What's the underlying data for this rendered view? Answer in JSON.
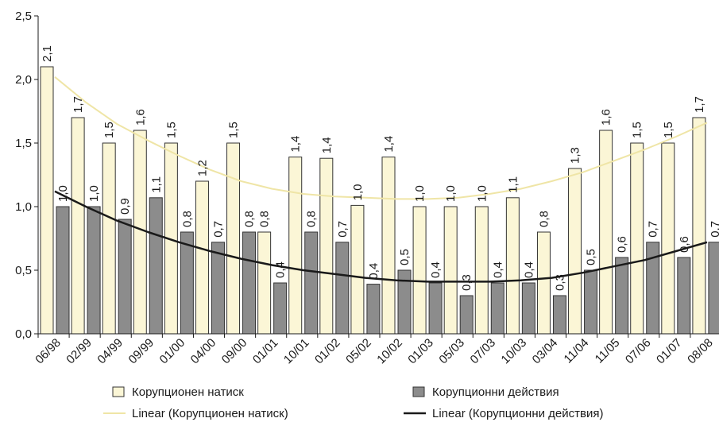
{
  "chart_data": {
    "type": "bar",
    "ylim": [
      0,
      2.5
    ],
    "yticks": [
      "0,0",
      "0,5",
      "1,0",
      "1,5",
      "2,0",
      "2,5"
    ],
    "ytick_values": [
      0,
      0.5,
      1.0,
      1.5,
      2.0,
      2.5
    ],
    "categories": [
      "06/98",
      "02/99",
      "04/99",
      "09/99",
      "01/00",
      "04/00",
      "09/00",
      "01/01",
      "10/01",
      "01/02",
      "05/02",
      "10/02",
      "01/03",
      "05/03",
      "07/03",
      "10/03",
      "03/04",
      "11/04",
      "11/05",
      "07/06",
      "01/07",
      "08/08"
    ],
    "series": [
      {
        "name": "Корупционен натиск",
        "color": "#fbf6d6",
        "values": [
          2.1,
          1.7,
          1.5,
          1.6,
          1.5,
          1.2,
          1.5,
          0.8,
          1.39,
          1.38,
          1.01,
          1.39,
          1.0,
          1.0,
          1.0,
          1.07,
          0.8,
          1.3,
          1.6,
          1.5,
          1.5,
          1.7
        ],
        "labels": [
          "2,1",
          "1,7",
          "1,5",
          "1,6",
          "1,5",
          "1,2",
          "1,5",
          "0,8",
          "1,4",
          "1,4",
          "1,0",
          "1,4",
          "1,0",
          "1,0",
          "1,0",
          "1,1",
          "0,8",
          "1,3",
          "1,6",
          "1,5",
          "1,5",
          "1,7"
        ]
      },
      {
        "name": "Корупционни действия",
        "color": "#8c8c8c",
        "values": [
          1.0,
          1.0,
          0.9,
          1.07,
          0.8,
          0.72,
          0.8,
          0.4,
          0.8,
          0.72,
          0.39,
          0.5,
          0.4,
          0.3,
          0.4,
          0.4,
          0.3,
          0.5,
          0.6,
          0.72,
          0.6,
          0.72
        ],
        "labels": [
          "1,0",
          "1,0",
          "0,9",
          "1,1",
          "0,8",
          "0,7",
          "0,8",
          "0,4",
          "0,8",
          "0,7",
          "0,4",
          "0,5",
          "0,4",
          "0,3",
          "0,4",
          "0,4",
          "0,3",
          "0,5",
          "0,6",
          "0,7",
          "0,6",
          "0,7"
        ]
      }
    ],
    "trendlines": [
      {
        "name": "Linear (Корупционен натиск)",
        "color": "#efe5a6",
        "values": [
          2.02,
          1.82,
          1.65,
          1.52,
          1.4,
          1.29,
          1.2,
          1.14,
          1.1,
          1.08,
          1.07,
          1.06,
          1.06,
          1.07,
          1.1,
          1.14,
          1.2,
          1.27,
          1.36,
          1.45,
          1.55,
          1.66
        ]
      },
      {
        "name": "Linear (Корупционни действия)",
        "color": "#1a1a1a",
        "values": [
          1.12,
          1.0,
          0.89,
          0.8,
          0.72,
          0.65,
          0.59,
          0.54,
          0.5,
          0.47,
          0.44,
          0.42,
          0.41,
          0.41,
          0.41,
          0.42,
          0.44,
          0.48,
          0.53,
          0.58,
          0.65,
          0.72
        ]
      }
    ],
    "legend": {
      "bar1": "Корупционен натиск",
      "bar2": "Корупционни действия",
      "line1": "Linear (Корупционен натиск)",
      "line2": "Linear (Корупционни действия)"
    }
  }
}
